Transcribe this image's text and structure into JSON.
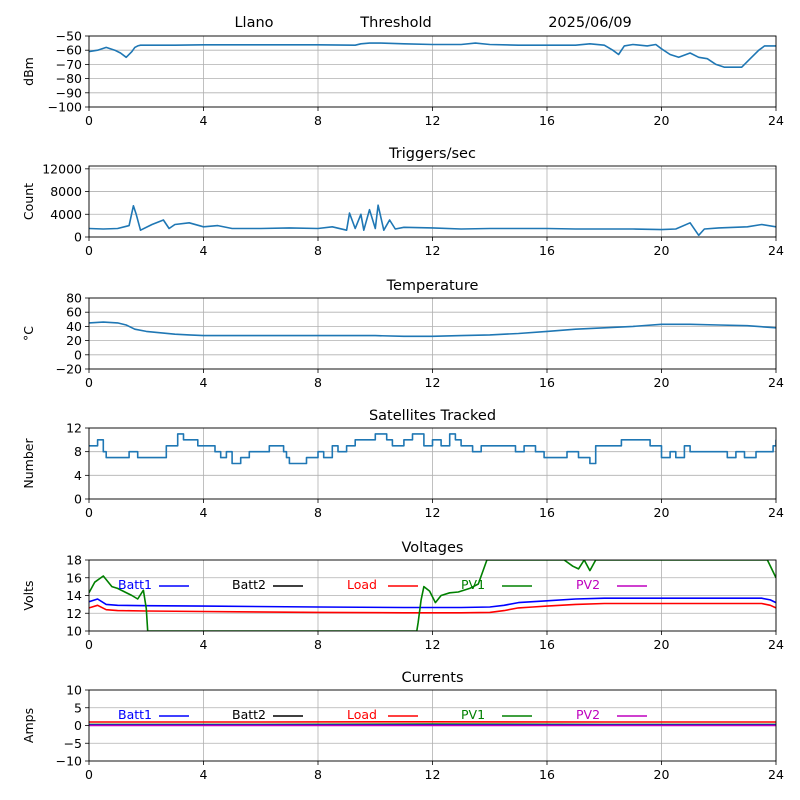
{
  "header": {
    "station": "Llano",
    "mode": "Threshold",
    "date": "2025/06/09"
  },
  "colors": {
    "series_default": "#1f77b4",
    "batt1": "#0000ff",
    "batt2": "#000000",
    "load": "#ff0000",
    "pv1": "#008000",
    "pv2": "#bf00bf",
    "grid": "#b0b0b0"
  },
  "chart_data": [
    {
      "type": "line",
      "id": "dbm",
      "title": "",
      "ylabel": "dBm",
      "xlim": [
        0,
        24
      ],
      "ylim": [
        -100,
        -50
      ],
      "xticks": [
        0,
        4,
        8,
        12,
        16,
        20,
        24
      ],
      "yticks": [
        -100,
        -90,
        -80,
        -70,
        -60,
        -50
      ],
      "ytick_labels": [
        "−100",
        "−90",
        "−80",
        "−70",
        "−60",
        "−50"
      ],
      "grid": true,
      "series": [
        {
          "color_key": "series_default",
          "x": [
            0,
            0.3,
            0.6,
            0.9,
            1.1,
            1.3,
            1.5,
            1.6,
            1.7,
            1.8,
            2.0,
            3,
            4,
            6,
            8,
            9.3,
            9.5,
            9.8,
            10.2,
            11,
            12,
            13,
            13.5,
            14,
            15,
            16,
            17,
            17.5,
            18,
            18.3,
            18.5,
            18.7,
            19,
            19.5,
            19.8,
            20,
            20.3,
            20.6,
            21,
            21.3,
            21.6,
            21.9,
            22.2,
            22.5,
            22.8,
            23.1,
            23.4,
            23.6,
            24
          ],
          "y": [
            -61,
            -60,
            -58,
            -60,
            -62,
            -65,
            -61,
            -58,
            -57,
            -56.5,
            -56.5,
            -56.5,
            -56.2,
            -56.2,
            -56.2,
            -56.5,
            -55.5,
            -55.0,
            -55.0,
            -55.5,
            -56.0,
            -56.0,
            -55.0,
            -56.0,
            -56.5,
            -56.5,
            -56.5,
            -55.5,
            -56.5,
            -60,
            -63,
            -57,
            -56,
            -57,
            -56,
            -59,
            -63,
            -65,
            -62,
            -65,
            -66,
            -70,
            -72,
            -72,
            -72,
            -66,
            -60,
            -57,
            -57
          ]
        }
      ]
    },
    {
      "type": "line",
      "id": "triggers",
      "title": "Triggers/sec",
      "ylabel": "Count",
      "xlim": [
        0,
        24
      ],
      "ylim": [
        0,
        12500
      ],
      "xticks": [
        0,
        4,
        8,
        12,
        16,
        20,
        24
      ],
      "yticks": [
        0,
        4000,
        8000,
        12000
      ],
      "ytick_labels": [
        "0",
        "4000",
        "8000",
        "12000"
      ],
      "grid": true,
      "series": [
        {
          "color_key": "series_default",
          "x": [
            0,
            0.5,
            1.0,
            1.4,
            1.55,
            1.65,
            1.8,
            2.2,
            2.6,
            2.8,
            3.0,
            3.5,
            4.0,
            4.5,
            5,
            6,
            7,
            8,
            8.5,
            9.0,
            9.1,
            9.3,
            9.5,
            9.6,
            9.8,
            10.0,
            10.1,
            10.3,
            10.5,
            10.7,
            11,
            12,
            13,
            14,
            15,
            16,
            17,
            18,
            19,
            20,
            20.5,
            21,
            21.3,
            21.5,
            22,
            23,
            23.5,
            24
          ],
          "y": [
            1500,
            1400,
            1500,
            2000,
            5500,
            4000,
            1200,
            2200,
            3000,
            1500,
            2200,
            2500,
            1800,
            2000,
            1500,
            1500,
            1600,
            1500,
            1800,
            1200,
            4200,
            1500,
            4000,
            1200,
            4800,
            1500,
            5600,
            1200,
            3000,
            1400,
            1700,
            1600,
            1400,
            1500,
            1500,
            1500,
            1400,
            1400,
            1400,
            1300,
            1400,
            2500,
            300,
            1400,
            1600,
            1800,
            2200,
            1800
          ]
        }
      ]
    },
    {
      "type": "line",
      "id": "temperature",
      "title": "Temperature",
      "ylabel": "°C",
      "xlim": [
        0,
        24
      ],
      "ylim": [
        -20,
        80
      ],
      "xticks": [
        0,
        4,
        8,
        12,
        16,
        20,
        24
      ],
      "yticks": [
        -20,
        0,
        20,
        40,
        60,
        80
      ],
      "ytick_labels": [
        "−20",
        "0",
        "20",
        "40",
        "60",
        "80"
      ],
      "grid": true,
      "series": [
        {
          "color_key": "series_default",
          "x": [
            0,
            0.5,
            1.0,
            1.3,
            1.6,
            2.0,
            2.5,
            3.0,
            3.5,
            4.0,
            6,
            8,
            10,
            11,
            12,
            13,
            14,
            15,
            16,
            17,
            18,
            19,
            20,
            21,
            22,
            23,
            24
          ],
          "y": [
            45,
            46,
            45,
            42,
            36,
            33,
            31,
            29,
            28,
            27,
            27,
            27,
            27,
            26,
            26,
            27,
            28,
            30,
            33,
            36,
            38,
            40,
            43,
            43,
            42,
            41,
            38
          ]
        }
      ]
    },
    {
      "type": "line",
      "id": "satellites",
      "title": "Satellites Tracked",
      "ylabel": "Number",
      "xlim": [
        0,
        24
      ],
      "ylim": [
        0,
        12
      ],
      "xticks": [
        0,
        4,
        8,
        12,
        16,
        20,
        24
      ],
      "yticks": [
        0,
        4,
        8,
        12
      ],
      "ytick_labels": [
        "0",
        "4",
        "8",
        "12"
      ],
      "grid": true,
      "step": true,
      "series": [
        {
          "color_key": "series_default",
          "x": [
            0,
            0.3,
            0.5,
            0.6,
            1.4,
            1.7,
            2.7,
            3.1,
            3.3,
            3.8,
            4.4,
            4.6,
            4.8,
            5.0,
            5.3,
            5.6,
            6.3,
            6.8,
            6.9,
            7.0,
            7.6,
            8.0,
            8.2,
            8.5,
            8.7,
            9.0,
            9.3,
            9.7,
            10.0,
            10.4,
            10.6,
            11.0,
            11.3,
            11.7,
            12.0,
            12.3,
            12.6,
            12.8,
            13.0,
            13.4,
            13.7,
            14.2,
            14.9,
            15.2,
            15.6,
            15.9,
            16.7,
            17.1,
            17.5,
            17.7,
            18.6,
            19.2,
            19.6,
            20.0,
            20.3,
            20.5,
            20.8,
            21.0,
            21.8,
            22.3,
            22.6,
            22.9,
            23.3,
            23.9,
            24
          ],
          "y": [
            9,
            10,
            8,
            7,
            8,
            7,
            9,
            11,
            10,
            9,
            8,
            7,
            8,
            6,
            7,
            8,
            9,
            8,
            7,
            6,
            7,
            8,
            7,
            9,
            8,
            9,
            10,
            10,
            11,
            10,
            9,
            10,
            11,
            9,
            10,
            9,
            11,
            10,
            9,
            8,
            9,
            9,
            8,
            9,
            8,
            7,
            8,
            7,
            6,
            9,
            10,
            10,
            9,
            7,
            8,
            7,
            9,
            8,
            8,
            7,
            8,
            7,
            8,
            9,
            10
          ]
        }
      ]
    },
    {
      "type": "line",
      "id": "voltages",
      "title": "Voltages",
      "ylabel": "Volts",
      "xlim": [
        0,
        24
      ],
      "ylim": [
        10,
        18
      ],
      "xticks": [
        0,
        4,
        8,
        12,
        16,
        20,
        24
      ],
      "yticks": [
        10,
        12,
        14,
        16,
        18
      ],
      "ytick_labels": [
        "10",
        "12",
        "14",
        "16",
        "18"
      ],
      "grid": true,
      "legend": [
        {
          "label": "Batt1",
          "color_key": "batt1"
        },
        {
          "label": "Batt2",
          "color_key": "batt2"
        },
        {
          "label": "Load",
          "color_key": "load"
        },
        {
          "label": "PV1",
          "color_key": "pv1"
        },
        {
          "label": "PV2",
          "color_key": "pv2"
        }
      ],
      "series": [
        {
          "name": "Batt1",
          "color_key": "batt1",
          "x": [
            0,
            0.3,
            0.6,
            1.0,
            2.0,
            4.0,
            8.0,
            11.0,
            12.0,
            13.0,
            14.0,
            14.5,
            15.0,
            15.5,
            16.0,
            17.0,
            18.0,
            20.0,
            22.0,
            23.5,
            23.8,
            24
          ],
          "y": [
            13.3,
            13.6,
            13.0,
            12.9,
            12.85,
            12.8,
            12.7,
            12.65,
            12.65,
            12.65,
            12.7,
            12.9,
            13.2,
            13.3,
            13.4,
            13.6,
            13.7,
            13.7,
            13.7,
            13.7,
            13.5,
            13.2
          ]
        },
        {
          "name": "Load",
          "color_key": "load",
          "x": [
            0,
            0.3,
            0.6,
            1.0,
            2.0,
            4.0,
            8.0,
            11.0,
            12.0,
            13.0,
            14.0,
            14.5,
            15.0,
            15.5,
            16.0,
            17.0,
            18.0,
            20.0,
            22.0,
            23.5,
            23.8,
            24
          ],
          "y": [
            12.6,
            12.9,
            12.4,
            12.3,
            12.25,
            12.2,
            12.1,
            12.05,
            12.05,
            12.05,
            12.1,
            12.3,
            12.6,
            12.7,
            12.8,
            13.0,
            13.1,
            13.1,
            13.1,
            13.1,
            12.9,
            12.6
          ]
        },
        {
          "name": "PV1",
          "color_key": "pv1",
          "x": [
            0,
            0.2,
            0.5,
            0.8,
            1.0,
            1.5,
            1.7,
            1.9,
            2.0,
            2.05,
            11.45,
            11.5,
            11.6,
            11.7,
            11.9,
            12.1,
            12.3,
            12.6,
            12.9,
            13.3,
            13.6,
            13.9,
            16.6,
            16.9,
            17.1,
            17.3,
            17.5,
            17.7,
            17.9,
            23.7,
            23.85,
            24
          ],
          "y": [
            14.3,
            15.5,
            16.2,
            15.0,
            14.8,
            14.0,
            13.6,
            14.6,
            12.5,
            10.0,
            10.0,
            11.0,
            13.5,
            15.0,
            14.5,
            13.2,
            14.0,
            14.3,
            14.4,
            14.8,
            15.3,
            18.0,
            18.0,
            17.3,
            17.0,
            18.0,
            16.8,
            18.0,
            18.0,
            18.0,
            17.0,
            16.0
          ]
        }
      ]
    },
    {
      "type": "line",
      "id": "currents",
      "title": "Currents",
      "ylabel": "Amps",
      "xlim": [
        0,
        24
      ],
      "ylim": [
        -10,
        10
      ],
      "xticks": [
        0,
        4,
        8,
        12,
        16,
        20,
        24
      ],
      "yticks": [
        -10,
        -5,
        0,
        5,
        10
      ],
      "ytick_labels": [
        "−10",
        "−5",
        "0",
        "5",
        "10"
      ],
      "grid": true,
      "legend": [
        {
          "label": "Batt1",
          "color_key": "batt1"
        },
        {
          "label": "Batt2",
          "color_key": "batt2"
        },
        {
          "label": "Load",
          "color_key": "load"
        },
        {
          "label": "PV1",
          "color_key": "pv1"
        },
        {
          "label": "PV2",
          "color_key": "pv2"
        }
      ],
      "series": [
        {
          "name": "PV1",
          "color_key": "pv1",
          "x": [
            0,
            6,
            12,
            18,
            24
          ],
          "y": [
            0.3,
            0.3,
            0.4,
            0.3,
            0.3
          ]
        },
        {
          "name": "Batt1",
          "color_key": "batt1",
          "x": [
            0,
            6,
            12,
            18,
            24
          ],
          "y": [
            0.1,
            0.1,
            0.15,
            0.1,
            0.1
          ]
        },
        {
          "name": "PV2",
          "color_key": "pv2",
          "x": [
            0,
            6,
            12,
            18,
            24
          ],
          "y": [
            0.0,
            0.0,
            0.0,
            0.0,
            0.0
          ]
        },
        {
          "name": "Load",
          "color_key": "load",
          "x": [
            0,
            6,
            12,
            18,
            24
          ],
          "y": [
            1.0,
            1.0,
            1.05,
            1.0,
            1.0
          ]
        }
      ]
    }
  ]
}
